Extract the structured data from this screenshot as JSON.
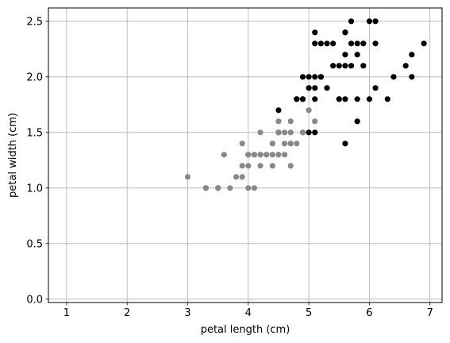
{
  "chart_data": {
    "type": "scatter",
    "xlabel": "petal length (cm)",
    "ylabel": "petal width (cm)",
    "xlim": [
      0.7,
      7.2
    ],
    "ylim": [
      -0.03,
      2.62
    ],
    "xticks": [
      1,
      2,
      3,
      4,
      5,
      6,
      7
    ],
    "yticks": [
      0.0,
      0.5,
      1.0,
      1.5,
      2.0,
      2.5
    ],
    "grid": true,
    "series": [
      {
        "color": "#888888",
        "points": [
          [
            4.7,
            1.4
          ],
          [
            4.5,
            1.5
          ],
          [
            4.9,
            1.5
          ],
          [
            4.0,
            1.3
          ],
          [
            4.6,
            1.5
          ],
          [
            4.5,
            1.3
          ],
          [
            4.7,
            1.6
          ],
          [
            3.3,
            1.0
          ],
          [
            4.6,
            1.3
          ],
          [
            3.9,
            1.4
          ],
          [
            3.5,
            1.0
          ],
          [
            4.2,
            1.5
          ],
          [
            4.0,
            1.0
          ],
          [
            4.7,
            1.4
          ],
          [
            3.6,
            1.3
          ],
          [
            4.4,
            1.4
          ],
          [
            4.5,
            1.5
          ],
          [
            4.1,
            1.0
          ],
          [
            4.5,
            1.5
          ],
          [
            3.9,
            1.1
          ],
          [
            4.8,
            1.8
          ],
          [
            4.0,
            1.3
          ],
          [
            4.9,
            1.5
          ],
          [
            4.7,
            1.2
          ],
          [
            4.3,
            1.3
          ],
          [
            4.4,
            1.4
          ],
          [
            4.8,
            1.4
          ],
          [
            5.0,
            1.7
          ],
          [
            4.5,
            1.5
          ],
          [
            3.5,
            1.0
          ],
          [
            3.8,
            1.1
          ],
          [
            3.7,
            1.0
          ],
          [
            3.9,
            1.2
          ],
          [
            5.1,
            1.6
          ],
          [
            4.5,
            1.5
          ],
          [
            4.5,
            1.6
          ],
          [
            4.7,
            1.5
          ],
          [
            4.4,
            1.3
          ],
          [
            4.1,
            1.3
          ],
          [
            4.0,
            1.3
          ],
          [
            4.4,
            1.2
          ],
          [
            4.6,
            1.4
          ],
          [
            4.0,
            1.2
          ],
          [
            3.3,
            1.0
          ],
          [
            4.2,
            1.3
          ],
          [
            4.2,
            1.2
          ],
          [
            4.2,
            1.3
          ],
          [
            4.3,
            1.3
          ],
          [
            3.0,
            1.1
          ],
          [
            4.1,
            1.3
          ]
        ]
      },
      {
        "color": "#000000",
        "points": [
          [
            6.0,
            2.5
          ],
          [
            5.1,
            1.9
          ],
          [
            5.9,
            2.1
          ],
          [
            5.6,
            1.8
          ],
          [
            5.8,
            2.2
          ],
          [
            6.6,
            2.1
          ],
          [
            4.5,
            1.7
          ],
          [
            6.3,
            1.8
          ],
          [
            5.8,
            1.8
          ],
          [
            6.1,
            2.5
          ],
          [
            5.1,
            2.0
          ],
          [
            5.3,
            1.9
          ],
          [
            5.5,
            2.1
          ],
          [
            5.0,
            2.0
          ],
          [
            5.1,
            2.4
          ],
          [
            5.3,
            2.3
          ],
          [
            5.5,
            1.8
          ],
          [
            6.7,
            2.2
          ],
          [
            6.9,
            2.3
          ],
          [
            5.0,
            1.5
          ],
          [
            5.7,
            2.3
          ],
          [
            4.9,
            2.0
          ],
          [
            6.7,
            2.0
          ],
          [
            4.9,
            1.8
          ],
          [
            5.7,
            2.1
          ],
          [
            6.0,
            1.8
          ],
          [
            4.8,
            1.8
          ],
          [
            4.9,
            1.8
          ],
          [
            5.6,
            2.1
          ],
          [
            5.8,
            1.6
          ],
          [
            6.1,
            1.9
          ],
          [
            6.4,
            2.0
          ],
          [
            5.6,
            2.2
          ],
          [
            5.1,
            1.5
          ],
          [
            5.6,
            1.4
          ],
          [
            6.1,
            2.3
          ],
          [
            5.6,
            2.4
          ],
          [
            5.5,
            1.8
          ],
          [
            4.8,
            1.8
          ],
          [
            5.4,
            2.1
          ],
          [
            5.6,
            2.4
          ],
          [
            5.1,
            2.3
          ],
          [
            5.9,
            2.3
          ],
          [
            5.7,
            2.5
          ],
          [
            5.2,
            2.3
          ],
          [
            5.0,
            1.9
          ],
          [
            5.2,
            2.0
          ],
          [
            5.4,
            2.3
          ],
          [
            5.1,
            1.8
          ],
          [
            5.2,
            2.0
          ],
          [
            5.8,
            2.3
          ]
        ]
      }
    ]
  }
}
